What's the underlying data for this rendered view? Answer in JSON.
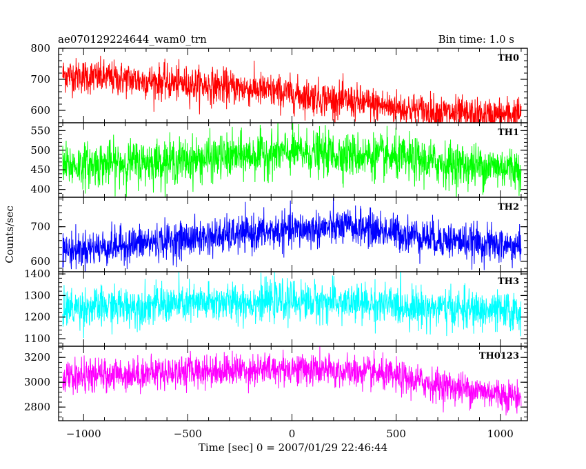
{
  "chart_data": {
    "type": "line",
    "title_left": "ae070129224644_wam0_trn",
    "title_right": "Bin time: 1.0 s",
    "xlabel": "Time [sec] 0 = 2007/01/29 22:46:44",
    "ylabel": "Counts/sec",
    "xlim": [
      -1120,
      1130
    ],
    "xticks": [
      -1000,
      -500,
      0,
      500,
      1000
    ],
    "xtick_labels": [
      "−1000",
      "−500",
      "0",
      "500",
      "1000"
    ],
    "x_range": [
      -1100,
      1100
    ],
    "bin_time_s": 1.0,
    "panels": [
      {
        "name": "TH0",
        "color": "#ff0000",
        "ylim": [
          560,
          800
        ],
        "yticks": [
          600,
          700,
          800
        ],
        "trend": [
          [
            -1100,
            715
          ],
          [
            -600,
            690
          ],
          [
            -200,
            670
          ],
          [
            200,
            635
          ],
          [
            600,
            600
          ],
          [
            900,
            580
          ],
          [
            1100,
            590
          ]
        ],
        "noise": 28
      },
      {
        "name": "TH1",
        "color": "#00ff00",
        "ylim": [
          380,
          570
        ],
        "yticks": [
          400,
          450,
          500,
          550
        ],
        "trend": [
          [
            -1100,
            460
          ],
          [
            -500,
            475
          ],
          [
            0,
            495
          ],
          [
            400,
            485
          ],
          [
            800,
            462
          ],
          [
            1100,
            455
          ]
        ],
        "noise": 28
      },
      {
        "name": "TH2",
        "color": "#0000ff",
        "ylim": [
          570,
          785
        ],
        "yticks": [
          600,
          700
        ],
        "trend": [
          [
            -1100,
            630
          ],
          [
            -500,
            665
          ],
          [
            0,
            690
          ],
          [
            300,
            700
          ],
          [
            700,
            665
          ],
          [
            1100,
            640
          ]
        ],
        "noise": 26
      },
      {
        "name": "TH3",
        "color": "#00ffff",
        "ylim": [
          1065,
          1410
        ],
        "yticks": [
          1100,
          1200,
          1300,
          1400
        ],
        "trend": [
          [
            -1100,
            1240
          ],
          [
            -400,
            1265
          ],
          [
            0,
            1275
          ],
          [
            400,
            1260
          ],
          [
            800,
            1235
          ],
          [
            1100,
            1220
          ]
        ],
        "noise": 45
      },
      {
        "name": "TH0123",
        "color": "#ff00ff",
        "ylim": [
          2690,
          3290
        ],
        "yticks": [
          2800,
          3000,
          3200
        ],
        "trend": [
          [
            -1100,
            3040
          ],
          [
            -500,
            3090
          ],
          [
            0,
            3110
          ],
          [
            400,
            3070
          ],
          [
            700,
            2980
          ],
          [
            1100,
            2880
          ]
        ],
        "noise": 65
      }
    ]
  }
}
